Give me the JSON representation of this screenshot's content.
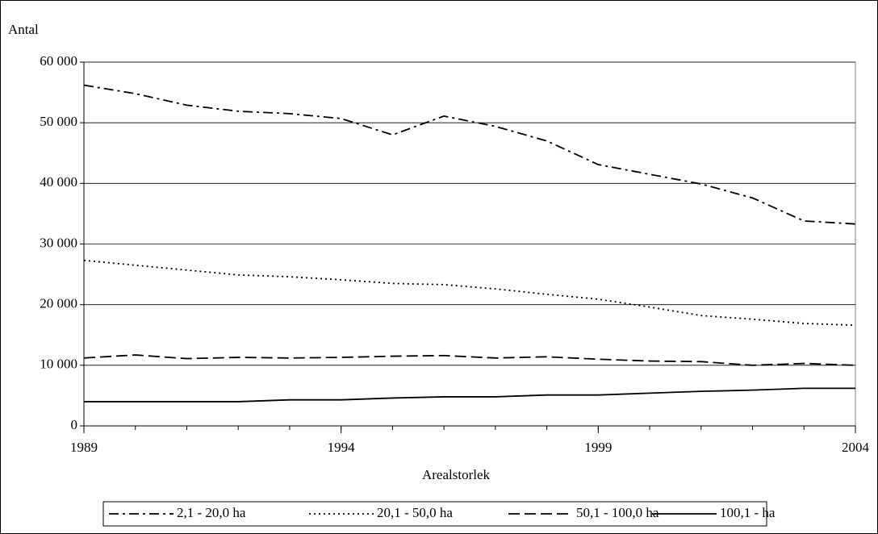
{
  "chart_data": {
    "type": "line",
    "y_label": "Antal",
    "x_label": "Arealstorlek",
    "x": [
      1989,
      1990,
      1991,
      1992,
      1993,
      1994,
      1995,
      1996,
      1997,
      1998,
      1999,
      2000,
      2001,
      2002,
      2003,
      2004
    ],
    "xlim": [
      1989,
      2004
    ],
    "xticks": [
      1989,
      1994,
      1999,
      2004
    ],
    "ylim": [
      0,
      60000
    ],
    "yticks": [
      0,
      {
        "value": 10000,
        "label": "10 000"
      },
      {
        "value": 20000,
        "label": "20 000"
      },
      {
        "value": 30000,
        "label": "30 000"
      },
      {
        "value": 40000,
        "label": "40 000"
      },
      {
        "value": 50000,
        "label": "50 000"
      },
      {
        "value": 60000,
        "label": "60 000"
      }
    ],
    "grid": true,
    "legend": "bottom",
    "series": [
      {
        "name": "2,1 - 20,0 ha",
        "color": "#000000",
        "dash": "dash-dot",
        "values": [
          56200,
          54800,
          52900,
          51900,
          51500,
          50700,
          48000,
          51100,
          49400,
          47000,
          43100,
          41500,
          39900,
          37600,
          33800,
          33300
        ]
      },
      {
        "name": "20,1 - 50,0 ha",
        "color": "#000000",
        "dash": "dot",
        "values": [
          27300,
          26500,
          25700,
          24900,
          24600,
          24100,
          23500,
          23300,
          22600,
          21700,
          20900,
          19600,
          18200,
          17600,
          16900,
          16600
        ]
      },
      {
        "name": "50,1 - 100,0 ha",
        "color": "#000000",
        "dash": "dash",
        "values": [
          11200,
          11700,
          11100,
          11300,
          11200,
          11300,
          11500,
          11600,
          11200,
          11400,
          11000,
          10700,
          10600,
          10000,
          10300,
          10000
        ]
      },
      {
        "name": "100,1 - ha",
        "color": "#000000",
        "dash": "solid",
        "values": [
          4000,
          4000,
          4000,
          4000,
          4300,
          4300,
          4600,
          4800,
          4800,
          5100,
          5100,
          5400,
          5700,
          5900,
          6200,
          6200
        ]
      }
    ]
  }
}
